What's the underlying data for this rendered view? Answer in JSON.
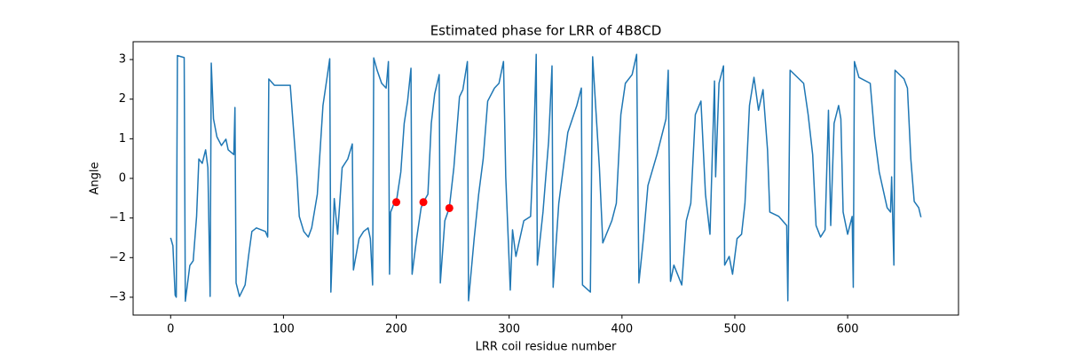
{
  "chart_data": {
    "type": "line",
    "title": "Estimated phase for LRR of 4B8CD",
    "xlabel": "LRR coil residue number",
    "ylabel": "Angle",
    "xlim": [
      -33.25,
      698.25
    ],
    "ylim": [
      -3.45,
      3.45
    ],
    "xticks": [
      0,
      100,
      200,
      300,
      400,
      500,
      600
    ],
    "yticks": [
      {
        "value": -3,
        "label": "−3"
      },
      {
        "value": -2,
        "label": "−2"
      },
      {
        "value": -1,
        "label": "−1"
      },
      0,
      1,
      2,
      3
    ],
    "series": [
      {
        "type": "line",
        "color": "#1f77b4",
        "x": [
          0,
          2,
          4,
          5,
          6,
          12,
          13,
          17,
          20,
          23,
          25,
          28,
          31,
          33,
          35,
          36,
          38,
          41,
          45,
          49,
          51,
          56,
          57,
          58,
          61,
          66,
          69,
          72,
          76,
          84,
          86,
          87,
          92,
          100,
          106,
          112,
          114,
          118,
          122,
          125,
          130,
          135,
          139,
          141,
          142,
          145,
          148,
          152,
          157,
          161,
          162,
          167,
          171,
          175,
          177,
          179,
          180,
          183,
          187,
          191,
          193,
          194,
          195,
          198,
          200,
          204,
          207,
          210,
          213,
          214,
          218,
          222,
          224,
          228,
          231,
          234,
          238,
          239,
          243,
          247,
          251,
          256,
          259,
          263,
          264,
          269,
          273,
          277,
          281,
          287,
          291,
          295,
          297,
          301,
          303,
          306,
          313,
          319,
          322,
          324,
          325,
          330,
          335,
          338,
          339,
          344,
          352,
          360,
          364,
          365,
          372,
          374,
          380,
          383,
          391,
          395,
          399,
          403,
          409,
          413,
          415,
          419,
          423,
          431,
          439,
          441,
          443,
          446,
          453,
          457,
          461,
          465,
          470,
          474,
          478,
          482,
          483,
          486,
          490,
          491,
          495,
          498,
          502,
          506,
          509,
          513,
          517,
          521,
          525,
          529,
          531,
          539,
          546,
          547,
          549,
          561,
          565,
          569,
          572,
          576,
          580,
          583,
          585,
          588,
          592,
          594,
          596,
          600,
          604,
          605,
          606,
          610,
          620,
          624,
          628,
          635,
          638,
          639,
          641,
          642,
          650,
          653,
          656,
          659,
          663,
          665
        ],
        "values": [
          -1.5,
          -1.7,
          -2.95,
          -3.0,
          3.1,
          3.05,
          -3.1,
          -2.2,
          -2.08,
          -0.96,
          0.49,
          0.38,
          0.72,
          0.27,
          -2.98,
          2.91,
          1.5,
          1.05,
          0.83,
          0.99,
          0.72,
          0.6,
          1.79,
          -2.64,
          -2.98,
          -2.69,
          -1.97,
          -1.34,
          -1.25,
          -1.34,
          -1.48,
          2.51,
          2.35,
          2.35,
          2.35,
          0.04,
          -0.96,
          -1.34,
          -1.48,
          -1.25,
          -0.4,
          1.84,
          2.62,
          3.02,
          -2.87,
          -0.51,
          -1.41,
          0.27,
          0.49,
          0.87,
          -2.31,
          -1.52,
          -1.34,
          -1.25,
          -1.52,
          -2.69,
          3.04,
          2.73,
          2.4,
          2.28,
          2.95,
          -2.42,
          -0.85,
          -0.63,
          -0.6,
          0.16,
          1.39,
          1.95,
          2.78,
          -2.42,
          -1.52,
          -0.74,
          -0.6,
          -0.4,
          1.39,
          2.13,
          2.62,
          -2.64,
          -1.07,
          -0.74,
          0.27,
          2.06,
          2.24,
          2.95,
          -3.09,
          -1.52,
          -0.4,
          0.49,
          1.95,
          2.28,
          2.4,
          2.95,
          0.04,
          -2.82,
          -1.3,
          -1.97,
          -1.07,
          -0.96,
          1.05,
          3.13,
          -2.19,
          -0.85,
          0.94,
          2.84,
          -2.75,
          -0.63,
          1.16,
          1.84,
          2.28,
          -2.69,
          -2.87,
          3.07,
          0.27,
          -1.63,
          -1.07,
          -0.63,
          1.61,
          2.4,
          2.62,
          3.13,
          -2.64,
          -1.52,
          -0.18,
          0.6,
          1.5,
          2.73,
          -2.6,
          -2.19,
          -2.69,
          -1.07,
          -0.63,
          1.61,
          1.95,
          -0.4,
          -1.41,
          2.46,
          0.04,
          2.4,
          2.84,
          -2.19,
          -1.97,
          -2.42,
          -1.52,
          -1.41,
          -0.63,
          1.84,
          2.55,
          1.72,
          2.24,
          0.72,
          -0.85,
          -0.96,
          -1.19,
          -3.09,
          2.73,
          2.4,
          1.61,
          0.6,
          -1.19,
          -1.48,
          -1.3,
          1.72,
          -1.19,
          1.39,
          1.84,
          1.5,
          -0.85,
          -1.41,
          -0.96,
          -2.75,
          2.95,
          2.55,
          2.4,
          1.05,
          0.16,
          -0.74,
          -0.85,
          0.04,
          -2.19,
          2.73,
          2.51,
          2.28,
          0.49,
          -0.58,
          -0.74,
          -0.98
        ]
      },
      {
        "type": "scatter",
        "color": "#ff0000",
        "x": [
          200,
          224,
          247
        ],
        "values": [
          -0.6,
          -0.6,
          -0.75
        ]
      }
    ]
  }
}
